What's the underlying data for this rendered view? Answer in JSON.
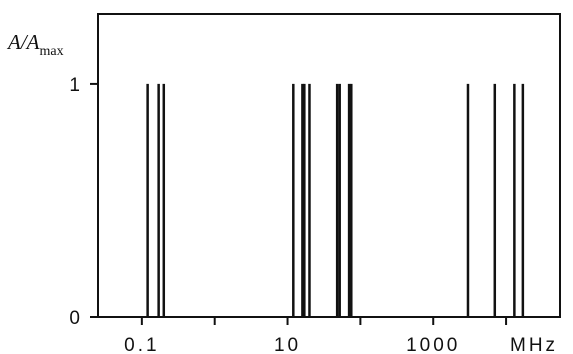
{
  "chart_data": {
    "type": "bar",
    "title": "",
    "ylabel_main": "A/A",
    "ylabel_sub": "max",
    "x_unit": "MHz",
    "x_scale": "log",
    "xlim": [
      0.025,
      55000
    ],
    "ylim": [
      0,
      1.3
    ],
    "x_ticks": [
      0.1,
      1,
      10,
      100,
      1000,
      10000
    ],
    "x_tick_labels": [
      "0.1",
      "",
      "10",
      "",
      "1000",
      ""
    ],
    "y_ticks": [
      0,
      1
    ],
    "y_tick_labels": [
      "0",
      "1"
    ],
    "grid": false,
    "legend": "none",
    "bar_color": "#111111",
    "series": [
      {
        "x": [
          0.12,
          0.17,
          0.2,
          12,
          16,
          17,
          20,
          48,
          52,
          70,
          75,
          3000,
          7000,
          13000,
          17000
        ],
        "values": [
          1,
          1,
          1,
          1,
          1,
          1,
          1,
          1,
          1,
          1,
          1,
          1,
          1,
          1,
          1
        ]
      }
    ]
  }
}
